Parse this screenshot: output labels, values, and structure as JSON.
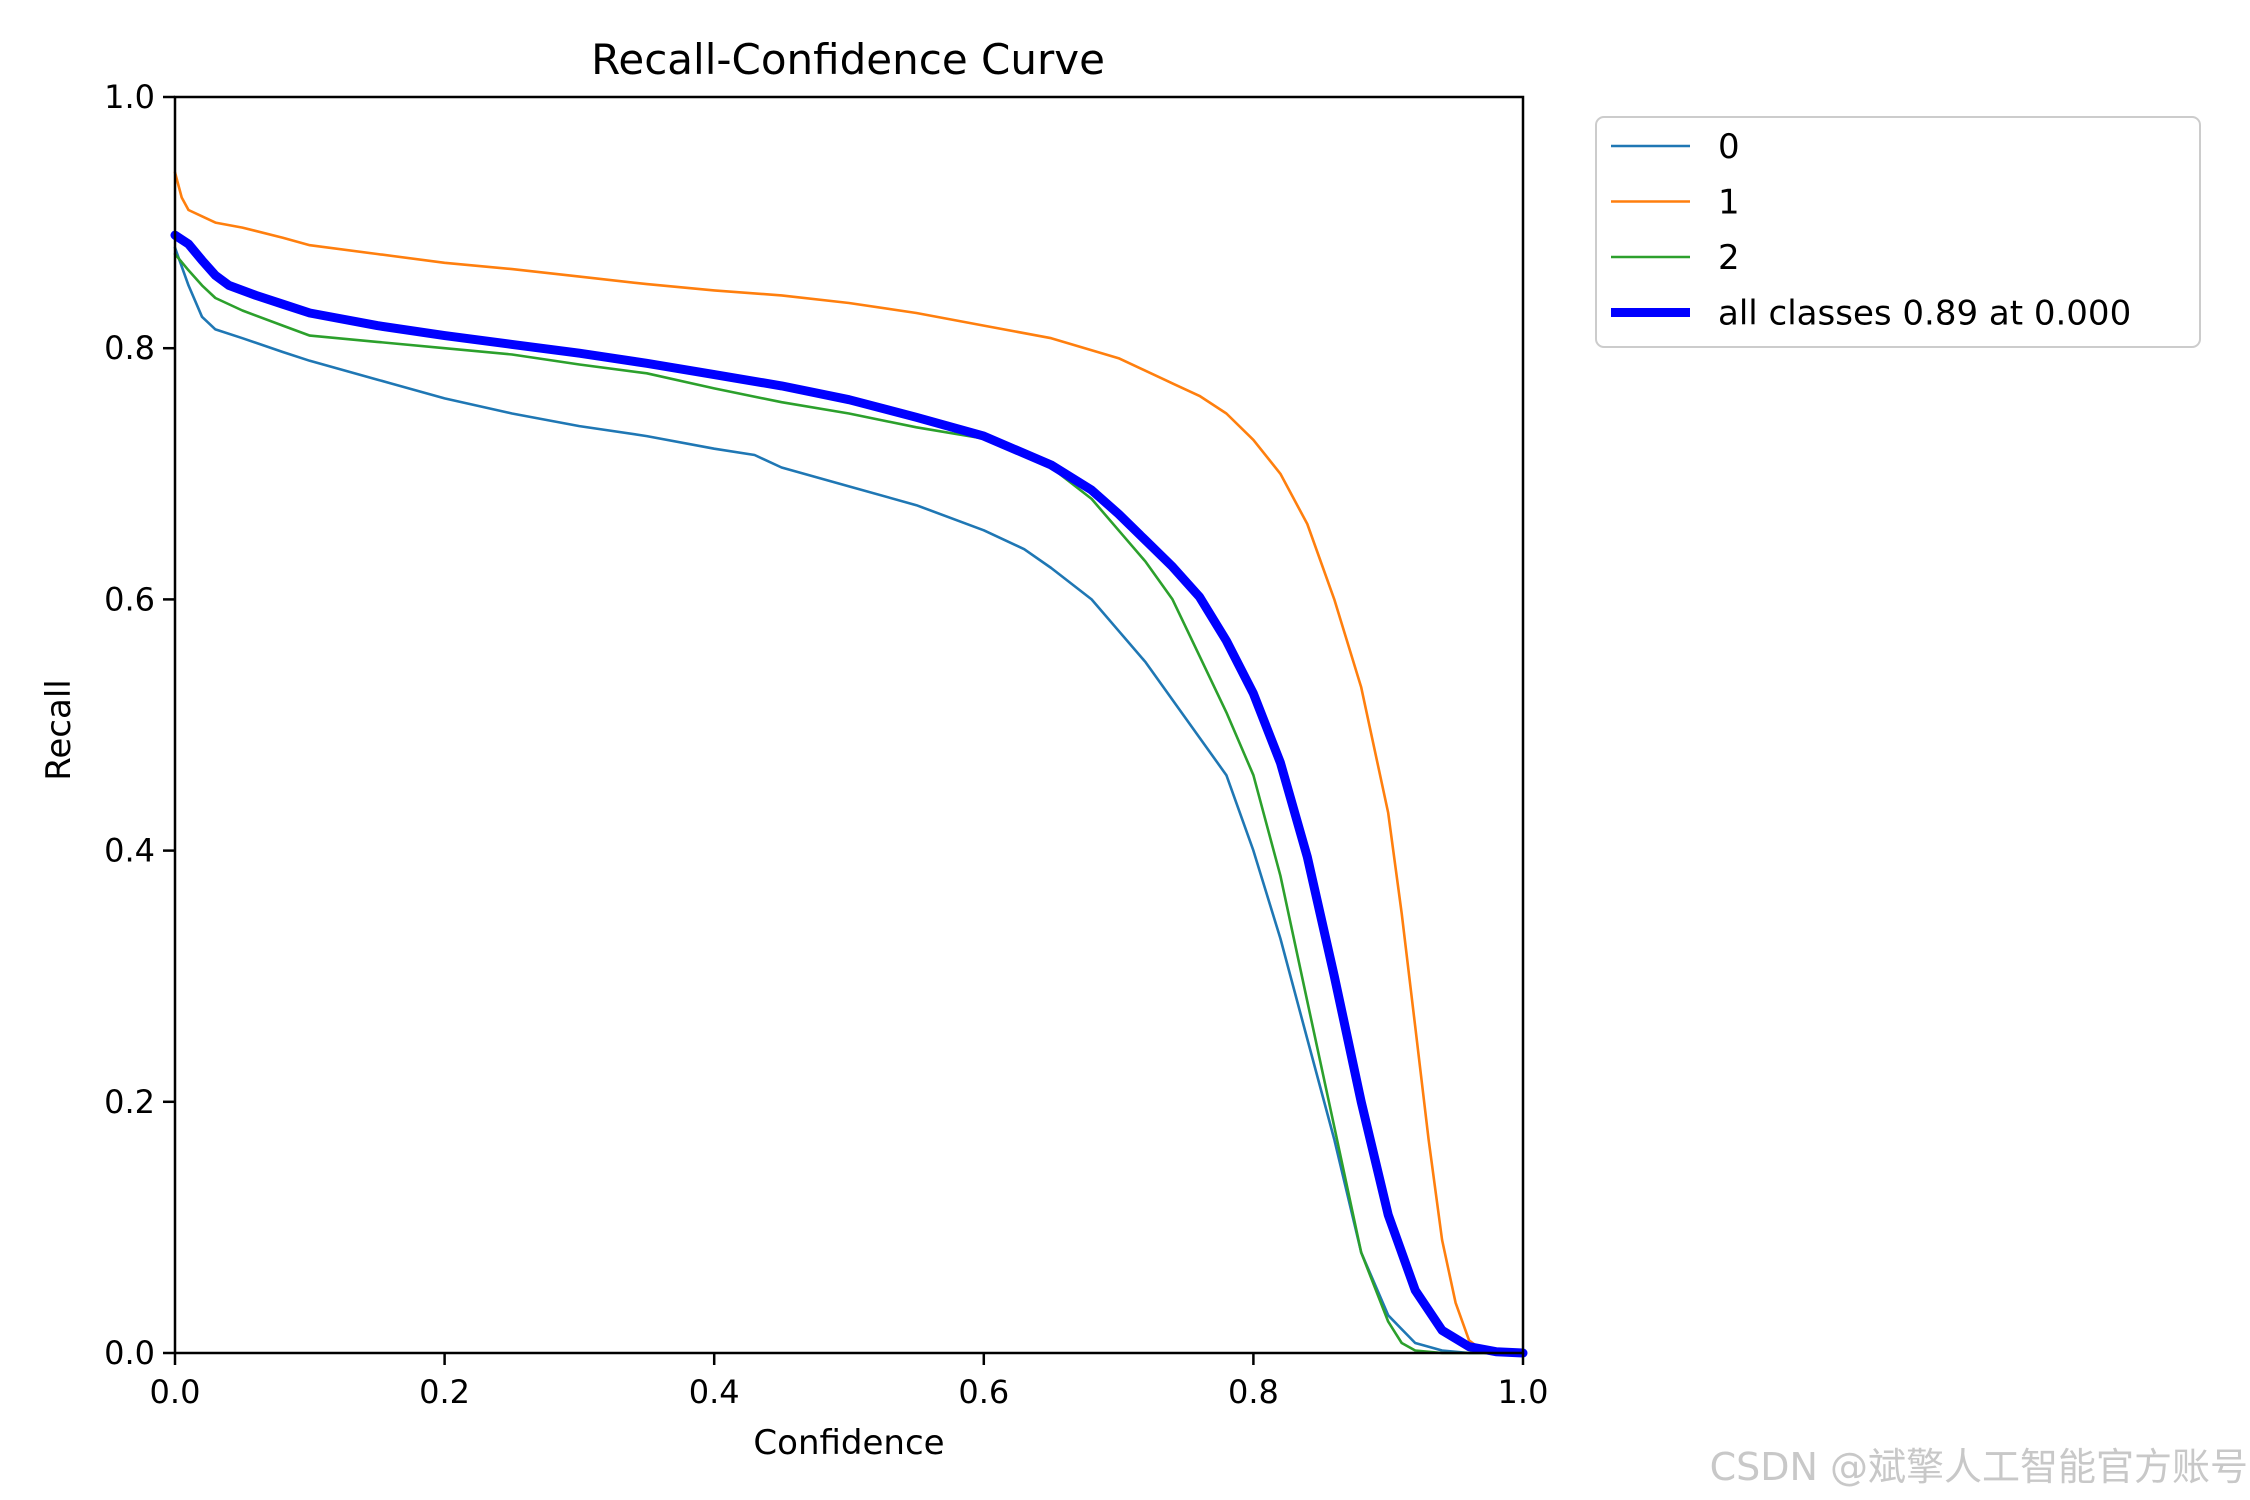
{
  "chart_data": {
    "type": "line",
    "title": "Recall-Confidence Curve",
    "xlabel": "Confidence",
    "ylabel": "Recall",
    "xlim": [
      0,
      1
    ],
    "ylim": [
      0,
      1
    ],
    "xticks": [
      "0.0",
      "0.2",
      "0.4",
      "0.6",
      "0.8",
      "1.0"
    ],
    "yticks": [
      "0.0",
      "0.2",
      "0.4",
      "0.6",
      "0.8",
      "1.0"
    ],
    "grid": false,
    "legend_position": "outside-top-right",
    "series": [
      {
        "name": "0",
        "color": "#1f77b4",
        "points": [
          [
            0.0,
            0.88
          ],
          [
            0.01,
            0.85
          ],
          [
            0.02,
            0.825
          ],
          [
            0.03,
            0.815
          ],
          [
            0.05,
            0.808
          ],
          [
            0.08,
            0.797
          ],
          [
            0.1,
            0.79
          ],
          [
            0.15,
            0.775
          ],
          [
            0.2,
            0.76
          ],
          [
            0.25,
            0.748
          ],
          [
            0.3,
            0.738
          ],
          [
            0.35,
            0.73
          ],
          [
            0.4,
            0.72
          ],
          [
            0.43,
            0.715
          ],
          [
            0.45,
            0.705
          ],
          [
            0.5,
            0.69
          ],
          [
            0.55,
            0.675
          ],
          [
            0.6,
            0.655
          ],
          [
            0.63,
            0.64
          ],
          [
            0.65,
            0.625
          ],
          [
            0.68,
            0.6
          ],
          [
            0.7,
            0.575
          ],
          [
            0.72,
            0.55
          ],
          [
            0.74,
            0.52
          ],
          [
            0.76,
            0.49
          ],
          [
            0.78,
            0.46
          ],
          [
            0.8,
            0.4
          ],
          [
            0.82,
            0.33
          ],
          [
            0.84,
            0.25
          ],
          [
            0.86,
            0.17
          ],
          [
            0.88,
            0.08
          ],
          [
            0.9,
            0.03
          ],
          [
            0.92,
            0.008
          ],
          [
            0.94,
            0.002
          ],
          [
            0.96,
            0.0
          ],
          [
            1.0,
            0.0
          ]
        ]
      },
      {
        "name": "1",
        "color": "#ff7f0e",
        "points": [
          [
            0.0,
            0.94
          ],
          [
            0.005,
            0.92
          ],
          [
            0.01,
            0.91
          ],
          [
            0.02,
            0.905
          ],
          [
            0.03,
            0.9
          ],
          [
            0.05,
            0.896
          ],
          [
            0.08,
            0.888
          ],
          [
            0.1,
            0.882
          ],
          [
            0.15,
            0.875
          ],
          [
            0.2,
            0.868
          ],
          [
            0.25,
            0.863
          ],
          [
            0.3,
            0.857
          ],
          [
            0.35,
            0.851
          ],
          [
            0.4,
            0.846
          ],
          [
            0.45,
            0.842
          ],
          [
            0.5,
            0.836
          ],
          [
            0.55,
            0.828
          ],
          [
            0.6,
            0.818
          ],
          [
            0.65,
            0.808
          ],
          [
            0.7,
            0.792
          ],
          [
            0.72,
            0.782
          ],
          [
            0.74,
            0.772
          ],
          [
            0.76,
            0.762
          ],
          [
            0.78,
            0.748
          ],
          [
            0.8,
            0.727
          ],
          [
            0.82,
            0.7
          ],
          [
            0.84,
            0.66
          ],
          [
            0.86,
            0.6
          ],
          [
            0.88,
            0.53
          ],
          [
            0.9,
            0.43
          ],
          [
            0.91,
            0.35
          ],
          [
            0.92,
            0.26
          ],
          [
            0.93,
            0.17
          ],
          [
            0.94,
            0.09
          ],
          [
            0.95,
            0.04
          ],
          [
            0.96,
            0.01
          ],
          [
            0.97,
            0.002
          ],
          [
            1.0,
            0.0
          ]
        ]
      },
      {
        "name": "2",
        "color": "#2ca02c",
        "points": [
          [
            0.0,
            0.875
          ],
          [
            0.01,
            0.862
          ],
          [
            0.02,
            0.85
          ],
          [
            0.03,
            0.84
          ],
          [
            0.05,
            0.83
          ],
          [
            0.08,
            0.818
          ],
          [
            0.1,
            0.81
          ],
          [
            0.15,
            0.805
          ],
          [
            0.2,
            0.8
          ],
          [
            0.25,
            0.795
          ],
          [
            0.3,
            0.787
          ],
          [
            0.35,
            0.78
          ],
          [
            0.4,
            0.768
          ],
          [
            0.45,
            0.757
          ],
          [
            0.5,
            0.748
          ],
          [
            0.55,
            0.737
          ],
          [
            0.6,
            0.728
          ],
          [
            0.63,
            0.715
          ],
          [
            0.65,
            0.705
          ],
          [
            0.68,
            0.68
          ],
          [
            0.7,
            0.655
          ],
          [
            0.72,
            0.63
          ],
          [
            0.74,
            0.6
          ],
          [
            0.76,
            0.555
          ],
          [
            0.78,
            0.51
          ],
          [
            0.8,
            0.46
          ],
          [
            0.82,
            0.38
          ],
          [
            0.84,
            0.28
          ],
          [
            0.86,
            0.18
          ],
          [
            0.88,
            0.08
          ],
          [
            0.9,
            0.025
          ],
          [
            0.91,
            0.008
          ],
          [
            0.92,
            0.002
          ],
          [
            0.94,
            0.0
          ],
          [
            1.0,
            0.0
          ]
        ]
      },
      {
        "name": "all classes 0.89 at 0.000",
        "color": "#0000ff",
        "bold": true,
        "points": [
          [
            0.0,
            0.89
          ],
          [
            0.01,
            0.883
          ],
          [
            0.02,
            0.87
          ],
          [
            0.03,
            0.858
          ],
          [
            0.04,
            0.85
          ],
          [
            0.06,
            0.842
          ],
          [
            0.08,
            0.835
          ],
          [
            0.1,
            0.828
          ],
          [
            0.15,
            0.818
          ],
          [
            0.2,
            0.81
          ],
          [
            0.25,
            0.803
          ],
          [
            0.3,
            0.796
          ],
          [
            0.35,
            0.788
          ],
          [
            0.4,
            0.779
          ],
          [
            0.45,
            0.77
          ],
          [
            0.5,
            0.759
          ],
          [
            0.55,
            0.745
          ],
          [
            0.6,
            0.73
          ],
          [
            0.65,
            0.707
          ],
          [
            0.68,
            0.687
          ],
          [
            0.7,
            0.668
          ],
          [
            0.72,
            0.647
          ],
          [
            0.74,
            0.626
          ],
          [
            0.76,
            0.602
          ],
          [
            0.78,
            0.567
          ],
          [
            0.8,
            0.525
          ],
          [
            0.82,
            0.47
          ],
          [
            0.84,
            0.395
          ],
          [
            0.86,
            0.3
          ],
          [
            0.88,
            0.2
          ],
          [
            0.9,
            0.11
          ],
          [
            0.92,
            0.05
          ],
          [
            0.94,
            0.018
          ],
          [
            0.96,
            0.005
          ],
          [
            0.98,
            0.001
          ],
          [
            1.0,
            0.0
          ]
        ]
      }
    ]
  },
  "watermark": "CSDN @斌擎人工智能官方账号"
}
